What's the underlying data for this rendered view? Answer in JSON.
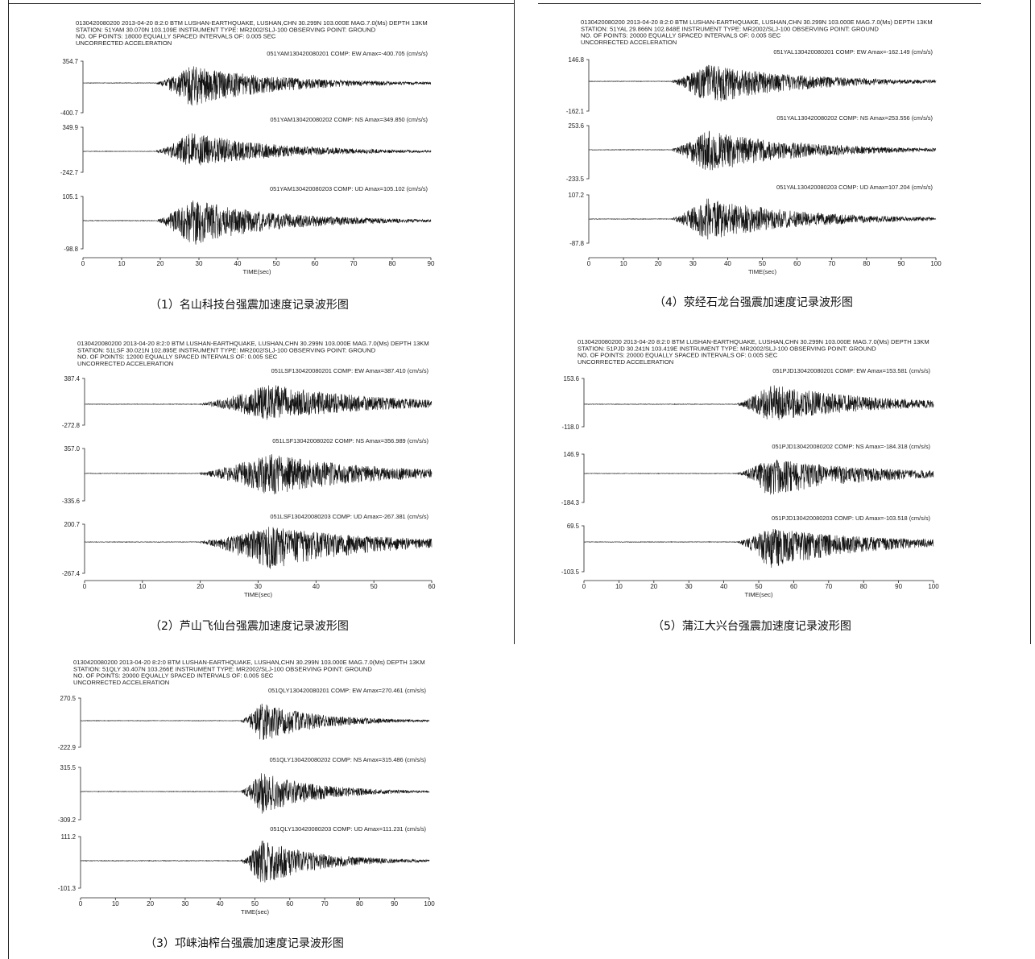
{
  "captions": [
    "（1）名山科技台强震加速度记录波形图",
    "（4）荥经石龙台强震加速度记录波形图",
    "（2）芦山飞仙台强震加速度记录波形图",
    "（5）蒲江大兴台强震加速度记录波形图",
    "（3）邛崃油榨台强震加速度记录波形图"
  ],
  "chart_data": [
    {
      "type": "line",
      "header": [
        "0130420080200 2013-04-20 8:2:0 BTM  LUSHAN-EARTHQUAKE, LUSHAN,CHN 30.299N 103.000E MAG.7.0(Ms) DEPTH 13KM",
        "STATION: 51YAM 30.070N 103.109E    INSTRUMENT TYPE: MR2002/SLJ-100     OBSERVING POINT: GROUND",
        "NO. OF POINTS: 18000      EQUALLY SPACED INTERVALS OF: 0.005 SEC",
        "UNCORRECTED ACCELERATION"
      ],
      "xlabel": "TIME(sec)",
      "xlim": [
        0,
        90
      ],
      "xticks": [
        "0",
        "10",
        "20",
        "30",
        "40",
        "50",
        "60",
        "70",
        "80",
        "90"
      ],
      "onset": 19,
      "peak": 28,
      "decay": 22,
      "traces": [
        {
          "label": "051YAM130420080201 COMP: EW   Amax=-400.705 (cm/s/s)",
          "ymax": "354.7",
          "ymin": "-400.7"
        },
        {
          "label": "051YAM130420080202 COMP: NS   Amax=349.850 (cm/s/s)",
          "ymax": "349.9",
          "ymin": "-242.7"
        },
        {
          "label": "051YAM130420080203 COMP: UD   Amax=105.102 (cm/s/s)",
          "ymax": "105.1",
          "ymin": "-98.8"
        }
      ]
    },
    {
      "type": "line",
      "header": [
        "0130420080200 2013-04-20 8:2:0 BTM  LUSHAN-EARTHQUAKE, LUSHAN,CHN 30.299N 103.000E MAG.7.0(Ms) DEPTH 13KM",
        "STATION: 51YAL 29.866N 102.848E    INSTRUMENT TYPE: MR2002/SLJ-100     OBSERVING POINT: GROUND",
        "NO. OF POINTS: 20000      EQUALLY SPACED INTERVALS OF: 0.005 SEC",
        "UNCORRECTED ACCELERATION"
      ],
      "xlabel": "TIME(sec)",
      "xlim": [
        0,
        100
      ],
      "xticks": [
        "0",
        "10",
        "20",
        "30",
        "40",
        "50",
        "60",
        "70",
        "80",
        "90",
        "100"
      ],
      "onset": 24,
      "peak": 34,
      "decay": 26,
      "traces": [
        {
          "label": "051YAL130420080201 COMP: EW   Amax=-162.149 (cm/s/s)",
          "ymax": "146.8",
          "ymin": "-162.1"
        },
        {
          "label": "051YAL130420080202 COMP: NS   Amax=253.556 (cm/s/s)",
          "ymax": "253.6",
          "ymin": "-233.5"
        },
        {
          "label": "051YAL130420080203 COMP: UD   Amax=107.204 (cm/s/s)",
          "ymax": "107.2",
          "ymin": "-87.8"
        }
      ]
    },
    {
      "type": "line",
      "header": [
        "0130420080200 2013-04-20 8:2:0 BTM  LUSHAN-EARTHQUAKE, LUSHAN,CHN 30.299N 103.000E MAG.7.0(Ms) DEPTH 13KM",
        "STATION: 51LSF 30.021N 102.895E    INSTRUMENT TYPE: MR2002/SLJ-100     OBSERVING POINT: GROUND",
        "NO. OF POINTS: 12000      EQUALLY SPACED INTERVALS OF: 0.005 SEC",
        "UNCORRECTED ACCELERATION"
      ],
      "xlabel": "TIME(sec)",
      "xlim": [
        0,
        60
      ],
      "xticks": [
        "0",
        "10",
        "20",
        "30",
        "40",
        "50",
        "60"
      ],
      "onset": 20,
      "peak": 32,
      "decay": 18,
      "traces": [
        {
          "label": "051LSF130420080201 COMP: EW   Amax=387.410 (cm/s/s)",
          "ymax": "387.4",
          "ymin": "-272.8"
        },
        {
          "label": "051LSF130420080202 COMP: NS   Amax=356.989 (cm/s/s)",
          "ymax": "357.0",
          "ymin": "-335.6"
        },
        {
          "label": "051LSF130420080203 COMP: UD   Amax=-267.381 (cm/s/s)",
          "ymax": "200.7",
          "ymin": "-267.4"
        }
      ]
    },
    {
      "type": "line",
      "header": [
        "0130420080200 2013-04-20 8:2:0 BTM  LUSHAN-EARTHQUAKE, LUSHAN,CHN 30.299N 103.000E MAG.7.0(Ms) DEPTH 13KM",
        "STATION: 51PJD 30.241N 103.419E    INSTRUMENT TYPE: MR2002/SLJ-100     OBSERVING POINT: GROUND",
        "NO. OF POINTS: 20000      EQUALLY SPACED INTERVALS OF: 0.005 SEC",
        "UNCORRECTED ACCELERATION"
      ],
      "xlabel": "TIME(sec)",
      "xlim": [
        0,
        100
      ],
      "xticks": [
        "0",
        "10",
        "20",
        "30",
        "40",
        "50",
        "60",
        "70",
        "80",
        "90",
        "100"
      ],
      "onset": 44,
      "peak": 53,
      "decay": 28,
      "traces": [
        {
          "label": "051PJD130420080201 COMP: EW   Amax=153.581 (cm/s/s)",
          "ymax": "153.6",
          "ymin": "-118.0"
        },
        {
          "label": "051PJD130420080202 COMP: NS   Amax=-184.318 (cm/s/s)",
          "ymax": "146.9",
          "ymin": "-184.3"
        },
        {
          "label": "051PJD130420080203 COMP: UD   Amax=-103.518 (cm/s/s)",
          "ymax": "69.5",
          "ymin": "-103.5"
        }
      ]
    },
    {
      "type": "line",
      "header": [
        "0130420080200 2013-04-20 8:2:0 BTM  LUSHAN-EARTHQUAKE, LUSHAN,CHN 30.299N 103.000E MAG.7.0(Ms) DEPTH 13KM",
        "STATION: 51QLY 30.407N 103.266E    INSTRUMENT TYPE: MR2002/SLJ-100     OBSERVING POINT: GROUND",
        "NO. OF POINTS: 20000      EQUALLY SPACED INTERVALS OF: 0.005 SEC",
        "UNCORRECTED ACCELERATION"
      ],
      "xlabel": "TIME(sec)",
      "xlim": [
        0,
        100
      ],
      "xticks": [
        "0",
        "10",
        "20",
        "30",
        "40",
        "50",
        "60",
        "70",
        "80",
        "90",
        "100"
      ],
      "onset": 46,
      "peak": 52,
      "decay": 16,
      "traces": [
        {
          "label": "051QLY130420080201 COMP: EW   Amax=270.461 (cm/s/s)",
          "ymax": "270.5",
          "ymin": "-222.9"
        },
        {
          "label": "051QLY130420080202 COMP: NS   Amax=315.486 (cm/s/s)",
          "ymax": "315.5",
          "ymin": "-309.2"
        },
        {
          "label": "051QLY130420080203 COMP: UD   Amax=111.231 (cm/s/s)",
          "ymax": "111.2",
          "ymin": "-101.3"
        }
      ]
    }
  ]
}
